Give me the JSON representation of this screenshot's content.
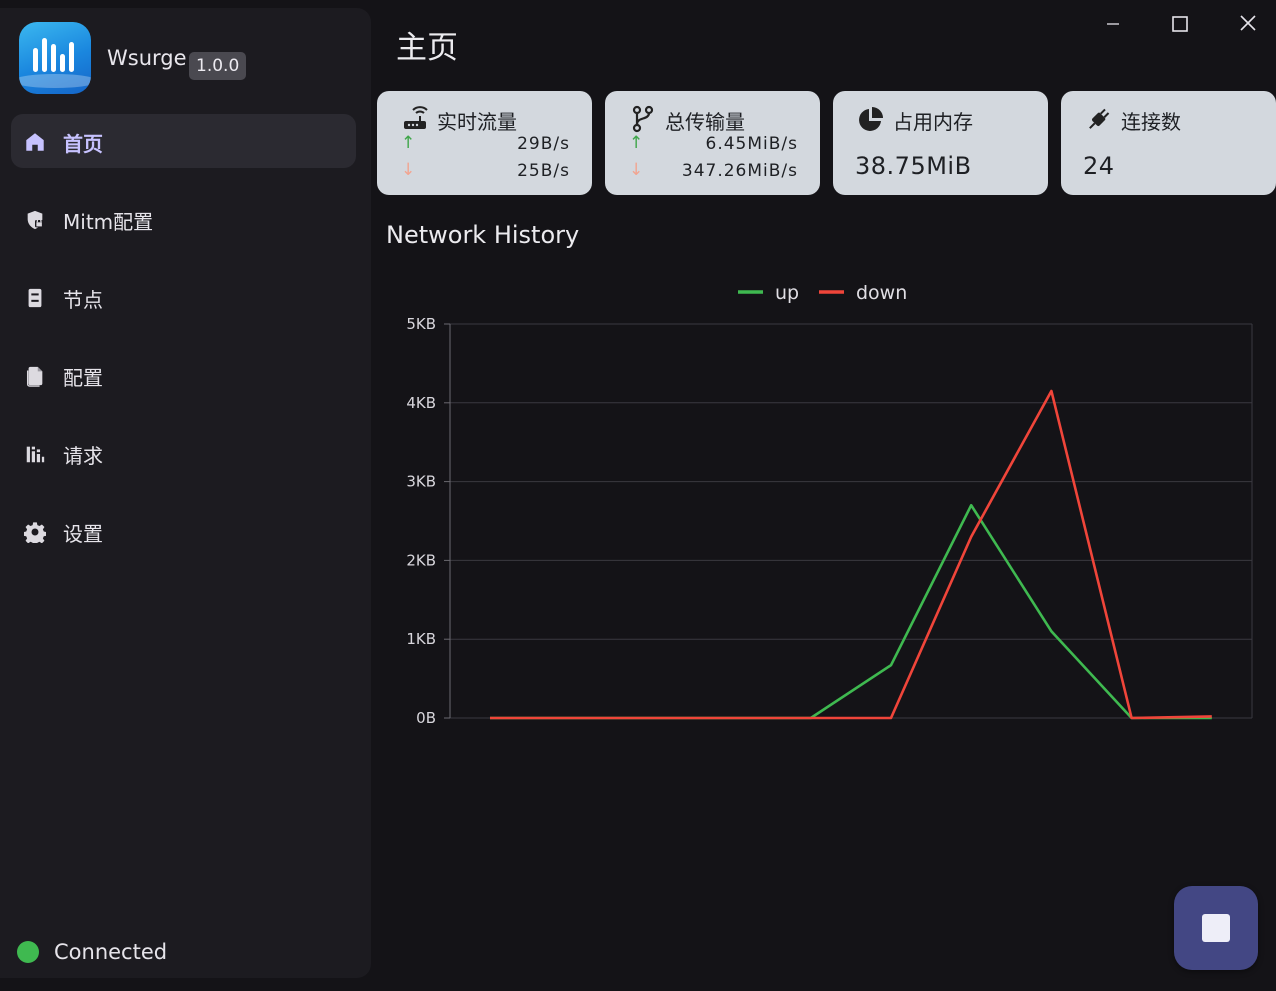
{
  "app": {
    "name": "Wsurge",
    "version": "1.0.0"
  },
  "sidebar": {
    "items": [
      {
        "label": "首页",
        "icon": "home-icon",
        "active": true
      },
      {
        "label": "Mitm配置",
        "icon": "shield-lock-icon",
        "active": false
      },
      {
        "label": "节点",
        "icon": "server-icon",
        "active": false
      },
      {
        "label": "配置",
        "icon": "file-icon",
        "active": false
      },
      {
        "label": "请求",
        "icon": "bar-chart-icon",
        "active": false
      },
      {
        "label": "设置",
        "icon": "gear-icon",
        "active": false
      }
    ],
    "status": {
      "text": "Connected",
      "color": "#3fb950"
    }
  },
  "header": {
    "title": "主页"
  },
  "cards": [
    {
      "title": "实时流量",
      "icon": "router-icon",
      "up": "29B/s",
      "down": "25B/s"
    },
    {
      "title": "总传输量",
      "icon": "branch-icon",
      "up": "6.45MiB/s",
      "down": "347.26MiB/s"
    },
    {
      "title": "占用内存",
      "icon": "pie-icon",
      "value": "38.75MiB"
    },
    {
      "title": "连接数",
      "icon": "plug-icon",
      "value": "24"
    }
  ],
  "history": {
    "title": "Network History"
  },
  "chart_data": {
    "type": "line",
    "title": "",
    "xlabel": "",
    "ylabel": "",
    "ylim": [
      0,
      5000
    ],
    "y_tick_labels": [
      "0B",
      "1KB",
      "2KB",
      "3KB",
      "4KB",
      "5KB"
    ],
    "grid": true,
    "legend_position": "top-center",
    "x": [
      1,
      2,
      3,
      4,
      5,
      6,
      7,
      8,
      9,
      10
    ],
    "series": [
      {
        "name": "up",
        "color": "#3fb950",
        "values": [
          0,
          0,
          0,
          0,
          0,
          670,
          2700,
          1100,
          0,
          0
        ]
      },
      {
        "name": "down",
        "color": "#f0453a",
        "values": [
          0,
          0,
          0,
          0,
          0,
          0,
          2300,
          4150,
          0,
          20
        ]
      }
    ]
  },
  "colors": {
    "accent": "#c7c2ff",
    "card_bg": "#d3d8de",
    "fab": "#434784"
  }
}
